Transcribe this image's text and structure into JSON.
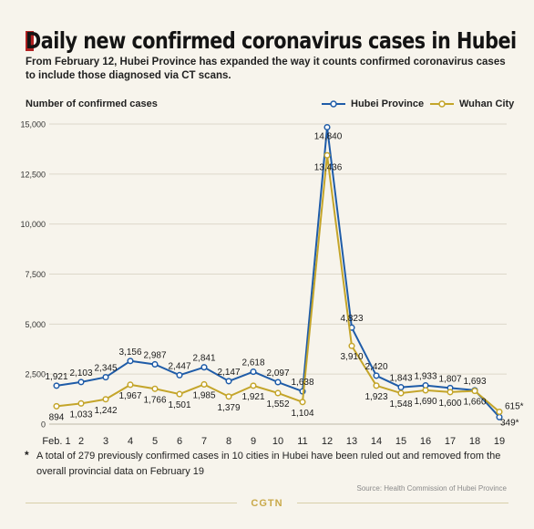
{
  "title": "Daily new confirmed coronavirus cases in Hubei",
  "subtitle": "From February 12, Hubei Province has expanded the way it counts confirmed coronavirus cases to include those diagnosed via CT scans.",
  "footnote_marker": "*",
  "footnote": "A total of 279 previously confirmed cases in 10 cities in Hubei have been ruled out and removed from the overall provincial data on February 19",
  "source": "Source: Health Commission of Hubei Province",
  "brand": "CGTN",
  "colors": {
    "hubei": "#1f5ca8",
    "wuhan": "#c4a52a",
    "title_accent": "#b22222",
    "background": "#f7f4ec"
  },
  "chart_data": {
    "type": "line",
    "ylabel": "Number of confirmed cases",
    "xlabel": "",
    "categories": [
      "Feb. 1",
      "2",
      "3",
      "4",
      "5",
      "6",
      "7",
      "8",
      "9",
      "10",
      "11",
      "12",
      "13",
      "14",
      "15",
      "16",
      "17",
      "18",
      "19"
    ],
    "ylim": [
      0,
      15000
    ],
    "yticks": [
      0,
      2500,
      5000,
      7500,
      10000,
      12500,
      15000
    ],
    "ytick_labels": [
      "0",
      "2,500",
      "5,000",
      "7,500",
      "10,000",
      "12,500",
      "15,000"
    ],
    "legend_position": "top-right",
    "grid": true,
    "series": [
      {
        "name": "Hubei Province",
        "values": [
          1921,
          2103,
          2345,
          3156,
          2987,
          2447,
          2841,
          2147,
          2618,
          2097,
          1638,
          14840,
          4823,
          2420,
          1843,
          1933,
          1807,
          1693,
          349
        ],
        "labels": [
          "1,921",
          "2,103",
          "2,345",
          "3,156",
          "2,987",
          "2,447",
          "2,841",
          "2,147",
          "2,618",
          "2,097",
          "1,638",
          "14,840",
          "4,823",
          "2,420",
          "1,843",
          "1,933",
          "1,807",
          "1,693",
          "349*"
        ]
      },
      {
        "name": "Wuhan City",
        "values": [
          894,
          1033,
          1242,
          1967,
          1766,
          1501,
          1985,
          1379,
          1921,
          1552,
          1104,
          13436,
          3910,
          1923,
          1548,
          1690,
          1600,
          1660,
          615
        ],
        "labels": [
          "894",
          "1,033",
          "1,242",
          "1,967",
          "1,766",
          "1,501",
          "1,985",
          "1,379",
          "1,921",
          "1,552",
          "1,104",
          "13,436",
          "3,910",
          "1,923",
          "1,548",
          "1,690",
          "1,600",
          "1,660",
          "615*"
        ]
      }
    ]
  }
}
